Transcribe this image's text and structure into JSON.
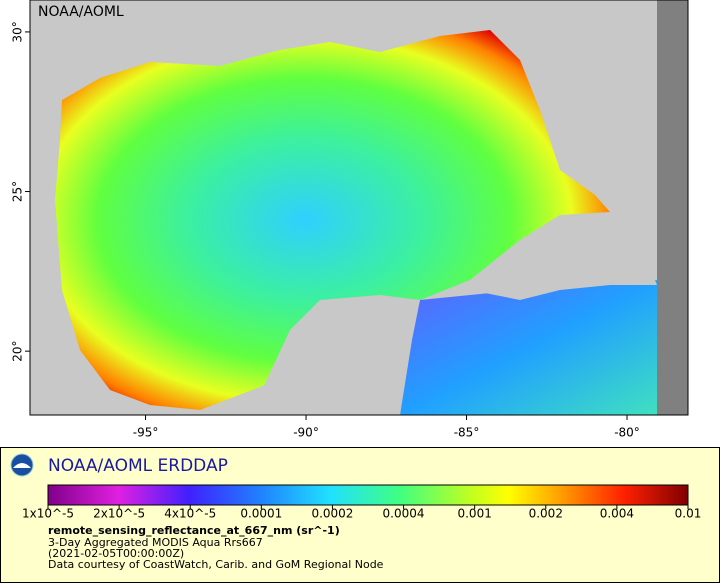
{
  "map": {
    "corner_label": "NOAA/AOML",
    "xlim": [
      -98.6,
      -78.1
    ],
    "ylim": [
      18,
      31
    ],
    "xticks": [
      {
        "value": -95,
        "label": "-95°"
      },
      {
        "value": -90,
        "label": "-90°"
      },
      {
        "value": -85,
        "label": "-85°"
      },
      {
        "value": -80,
        "label": "-80°"
      }
    ],
    "yticks": [
      {
        "value": 20,
        "label": "20°"
      },
      {
        "value": 25,
        "label": "25°"
      },
      {
        "value": 30,
        "label": "30°"
      }
    ]
  },
  "legend": {
    "brand": "NOAA/AOML ERDDAP",
    "colorbar_ticks": [
      {
        "value": 1e-05,
        "label": "1x10^-5"
      },
      {
        "value": 2e-05,
        "label": "2x10^-5"
      },
      {
        "value": 4e-05,
        "label": "4x10^-5"
      },
      0.0001,
      0.0002,
      0.0004,
      0.001,
      0.002,
      0.004,
      0.01
    ],
    "variable": "remote_sensing_reflectance_at_667_nm (sr^-1)",
    "dataset": "3-Day Aggregated MODIS Aqua Rrs667",
    "time": "(2021-02-05T00:00:00Z)",
    "credit": "Data courtesy of CoastWatch, Carib. and GoM Regional Node"
  }
}
